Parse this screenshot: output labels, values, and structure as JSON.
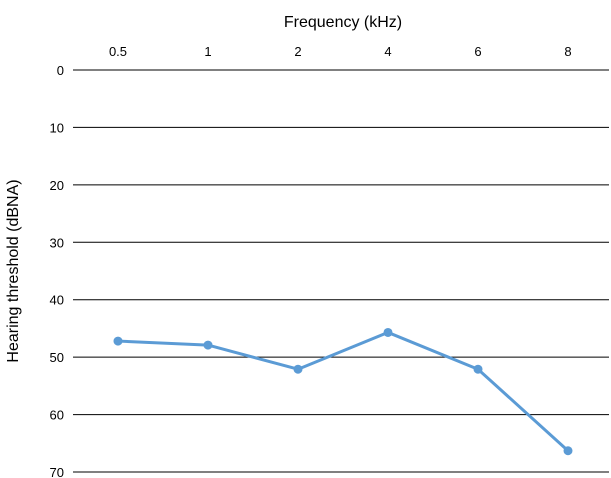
{
  "chart_data": {
    "type": "line",
    "title": "",
    "xlabel": "Frequency (kHz)",
    "ylabel": "Hearing threshold (dBNA)",
    "categories": [
      "0.5",
      "1",
      "2",
      "4",
      "6",
      "8"
    ],
    "yticks": [
      "0",
      "10",
      "20",
      "30",
      "40",
      "50",
      "60",
      "70"
    ],
    "ylim": [
      0,
      70
    ],
    "y_inverted": true,
    "x_axis_position": "top",
    "grid": true,
    "series": [
      {
        "values": [
          47.2,
          47.9,
          52.1,
          45.7,
          52.1,
          66.3
        ],
        "color": "#5b9bd5"
      }
    ]
  }
}
